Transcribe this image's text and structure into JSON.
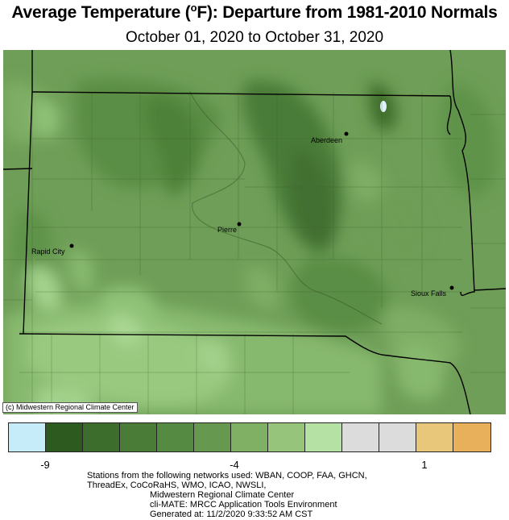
{
  "title_text": "Average Temperature (",
  "title_unit_sup": "o",
  "title_rest": "F): Departure from 1981-2010 Normals",
  "subtitle": "October 01, 2020 to October 31, 2020",
  "credit": "(c) Midwestern Regional Climate Center",
  "cities": [
    {
      "name": "Aberdeen"
    },
    {
      "name": "Pierre"
    },
    {
      "name": "Rapid City"
    },
    {
      "name": "Sioux Falls"
    }
  ],
  "legend": {
    "colors": [
      "#c6ecfa",
      "#2d5a1e",
      "#3d6d2c",
      "#4a7c38",
      "#558a43",
      "#67984f",
      "#7fb063",
      "#95c47a",
      "#b5e2a4",
      "#dcdcdc",
      "#dcdcdc",
      "#e8c67a",
      "#e8b05a"
    ],
    "ticks": [
      "-9",
      "-4",
      "1"
    ]
  },
  "footer": {
    "line1": "Stations from the following networks used: WBAN, COOP, FAA, GHCN,",
    "line2": "ThreadEx, CoCoRaHS, WMO, ICAO, NWSLI,",
    "line3": "Midwestern Regional Climate Center",
    "line4": "cli-MATE: MRCC Application Tools Environment",
    "line5": "Generated at: 11/2/2020 9:33:52 AM CST"
  }
}
